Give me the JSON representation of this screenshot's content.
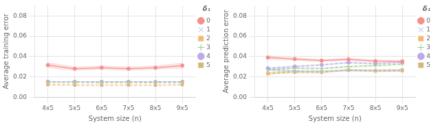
{
  "chart_data": [
    {
      "type": "line",
      "x_label": "System size (n)",
      "y_label": "Average training error",
      "categories": [
        "4x5",
        "5x5",
        "6x5",
        "7x5",
        "8x5",
        "9x5"
      ],
      "legend_title": "δ₁",
      "legend": "upper right",
      "grid": true,
      "ylim": [
        0.0,
        0.09
      ],
      "yticks": [
        {
          "value": 0.0,
          "label": "0.00"
        },
        {
          "value": 0.02,
          "label": "0.02"
        },
        {
          "value": 0.04,
          "label": "0.04"
        },
        {
          "value": 0.06,
          "label": "0.06"
        },
        {
          "value": 0.08,
          "label": "0.08"
        }
      ],
      "series": [
        {
          "name": "0",
          "color": "#f4908a",
          "marker": "circle",
          "line_style": "solid",
          "values": [
            0.0315,
            0.028,
            0.029,
            0.028,
            0.029,
            0.031
          ],
          "stds": [
            0.003,
            0.002,
            0.002,
            0.002,
            0.002,
            0.003
          ]
        },
        {
          "name": "1",
          "color": "#90c4e8",
          "marker": "cross",
          "line_style": "dashed",
          "values": [
            0.0153,
            0.0152,
            0.0151,
            0.0153,
            0.0152,
            0.0152
          ],
          "stds": [
            0.0003,
            0.0003,
            0.0003,
            0.0003,
            0.0003,
            0.0003
          ]
        },
        {
          "name": "2",
          "color": "#f5b87a",
          "marker": "square",
          "line_style": "dashed",
          "values": [
            0.0143,
            0.0142,
            0.0139,
            0.0141,
            0.014,
            0.0143
          ],
          "stds": [
            0.0003,
            0.0003,
            0.0003,
            0.0003,
            0.0003,
            0.0003
          ]
        },
        {
          "name": "3",
          "color": "#90d090",
          "marker": "plus",
          "line_style": "dashed",
          "values": [
            0.0152,
            0.0153,
            0.0152,
            0.0152,
            0.0153,
            0.0152
          ],
          "stds": [
            0.0003,
            0.0003,
            0.0003,
            0.0003,
            0.0003,
            0.0003
          ]
        },
        {
          "name": "4",
          "color": "#c0a8e8",
          "marker": "circle",
          "line_style": "dashed",
          "values": [
            0.0152,
            0.0152,
            0.0151,
            0.0151,
            0.0149,
            0.0151
          ],
          "stds": [
            0.0003,
            0.0003,
            0.0003,
            0.0003,
            0.0003,
            0.0003
          ]
        },
        {
          "name": "5",
          "color": "#d4b87a",
          "marker": "square",
          "line_style": "dashed",
          "values": [
            0.0122,
            0.0119,
            0.0117,
            0.0119,
            0.0117,
            0.0122
          ],
          "stds": [
            0.0003,
            0.0003,
            0.0003,
            0.0003,
            0.0003,
            0.0003
          ]
        }
      ]
    },
    {
      "type": "line",
      "x_label": "System size (n)",
      "y_label": "Average prediction error",
      "categories": [
        "4x5",
        "5x5",
        "6x5",
        "7x5",
        "8x5",
        "9x5"
      ],
      "legend_title": "δ₁",
      "legend": "upper right",
      "grid": true,
      "ylim": [
        0.0,
        0.09
      ],
      "yticks": [
        {
          "value": 0.0,
          "label": "0.00"
        },
        {
          "value": 0.02,
          "label": "0.02"
        },
        {
          "value": 0.04,
          "label": "0.04"
        },
        {
          "value": 0.06,
          "label": "0.06"
        },
        {
          "value": 0.08,
          "label": "0.08"
        }
      ],
      "series": [
        {
          "name": "0",
          "color": "#f4908a",
          "marker": "circle",
          "line_style": "solid",
          "values": [
            0.039,
            0.0375,
            0.036,
            0.0372,
            0.0355,
            0.0352
          ],
          "stds": [
            0.002,
            0.0015,
            0.0015,
            0.0015,
            0.0015,
            0.0015
          ]
        },
        {
          "name": "1",
          "color": "#90c4e8",
          "marker": "cross",
          "line_style": "dashed",
          "values": [
            0.027,
            0.0255,
            0.0255,
            0.0263,
            0.026,
            0.0262
          ],
          "stds": [
            0.001,
            0.001,
            0.001,
            0.001,
            0.001,
            0.001
          ]
        },
        {
          "name": "2",
          "color": "#f5b87a",
          "marker": "square",
          "line_style": "dashed",
          "values": [
            0.024,
            0.0255,
            0.025,
            0.0263,
            0.0255,
            0.0258
          ],
          "stds": [
            0.001,
            0.001,
            0.001,
            0.001,
            0.001,
            0.001
          ]
        },
        {
          "name": "3",
          "color": "#90d090",
          "marker": "plus",
          "line_style": "dashed",
          "values": [
            0.0272,
            0.0285,
            0.0282,
            0.03,
            0.031,
            0.0325
          ],
          "stds": [
            0.001,
            0.001,
            0.001,
            0.001,
            0.001,
            0.001
          ]
        },
        {
          "name": "4",
          "color": "#c0a8e8",
          "marker": "circle",
          "line_style": "dashed",
          "values": [
            0.0285,
            0.0302,
            0.0318,
            0.034,
            0.033,
            0.0342
          ],
          "stds": [
            0.001,
            0.001,
            0.001,
            0.001,
            0.001,
            0.001
          ]
        },
        {
          "name": "5",
          "color": "#d4b87a",
          "marker": "square",
          "line_style": "dashed",
          "values": [
            0.023,
            0.0245,
            0.0243,
            0.0268,
            0.0263,
            0.0268
          ],
          "stds": [
            0.001,
            0.001,
            0.001,
            0.001,
            0.001,
            0.001
          ]
        }
      ]
    }
  ]
}
